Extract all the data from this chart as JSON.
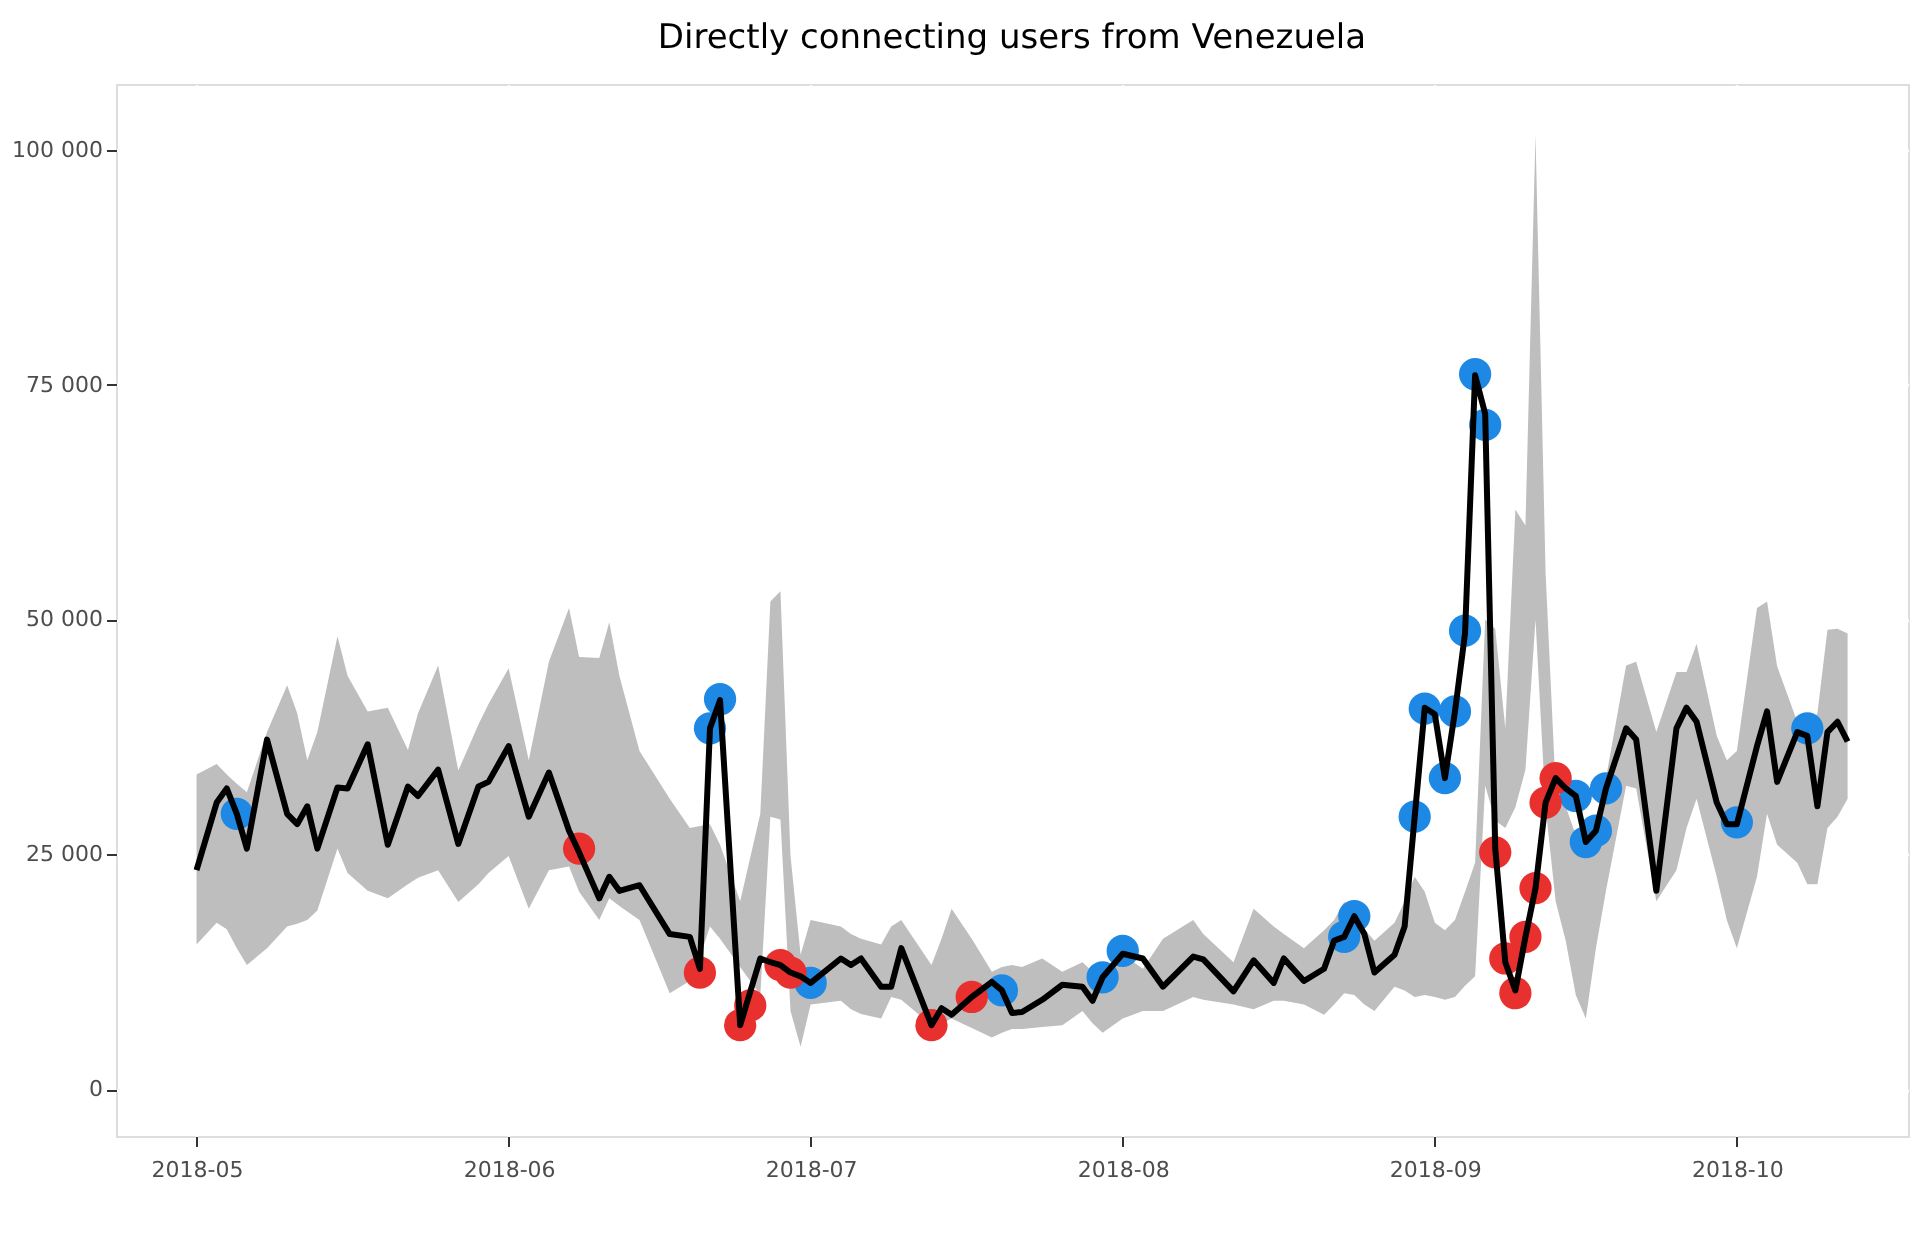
{
  "chart_data": {
    "type": "line",
    "title": "Directly connecting users from Venezuela",
    "xlim": [
      "2018-04-23",
      "2018-10-18"
    ],
    "xticks": [
      "2018-05",
      "2018-06",
      "2018-07",
      "2018-08",
      "2018-09",
      "2018-10"
    ],
    "ylim": [
      -5000,
      107000
    ],
    "yticks": [
      {
        "value": 0,
        "label": "0"
      },
      {
        "value": 25000,
        "label": "25 000"
      },
      {
        "value": 50000,
        "label": "50 000"
      },
      {
        "value": 75000,
        "label": "75 000"
      },
      {
        "value": 100000,
        "label": "100 000"
      }
    ],
    "grid": true,
    "marker": "none",
    "line_style": "solid",
    "series": [
      {
        "color": "#000000",
        "x": [
          "2018-05-01",
          "2018-05-03",
          "2018-05-04",
          "2018-05-05",
          "2018-05-06",
          "2018-05-08",
          "2018-05-10",
          "2018-05-11",
          "2018-05-12",
          "2018-05-13",
          "2018-05-15",
          "2018-05-16",
          "2018-05-18",
          "2018-05-20",
          "2018-05-22",
          "2018-05-23",
          "2018-05-25",
          "2018-05-27",
          "2018-05-29",
          "2018-05-30",
          "2018-06-01",
          "2018-06-03",
          "2018-06-05",
          "2018-06-07",
          "2018-06-08",
          "2018-06-10",
          "2018-06-11",
          "2018-06-12",
          "2018-06-14",
          "2018-06-17",
          "2018-06-19",
          "2018-06-20",
          "2018-06-21",
          "2018-06-22",
          "2018-06-24",
          "2018-06-26",
          "2018-06-27",
          "2018-06-28",
          "2018-06-29",
          "2018-06-30",
          "2018-07-01",
          "2018-07-04",
          "2018-07-05",
          "2018-07-06",
          "2018-07-08",
          "2018-07-09",
          "2018-07-10",
          "2018-07-13",
          "2018-07-14",
          "2018-07-15",
          "2018-07-17",
          "2018-07-19",
          "2018-07-20",
          "2018-07-21",
          "2018-07-22",
          "2018-07-24",
          "2018-07-26",
          "2018-07-28",
          "2018-07-29",
          "2018-07-30",
          "2018-08-01",
          "2018-08-03",
          "2018-08-05",
          "2018-08-08",
          "2018-08-09",
          "2018-08-12",
          "2018-08-14",
          "2018-08-16",
          "2018-08-17",
          "2018-08-19",
          "2018-08-21",
          "2018-08-22",
          "2018-08-23",
          "2018-08-24",
          "2018-08-25",
          "2018-08-26",
          "2018-08-28",
          "2018-08-29",
          "2018-08-30",
          "2018-08-31",
          "2018-09-01",
          "2018-09-02",
          "2018-09-03",
          "2018-09-04",
          "2018-09-05",
          "2018-09-06",
          "2018-09-07",
          "2018-09-08",
          "2018-09-09",
          "2018-09-10",
          "2018-09-11",
          "2018-09-12",
          "2018-09-13",
          "2018-09-14",
          "2018-09-15",
          "2018-09-16",
          "2018-09-17",
          "2018-09-18",
          "2018-09-20",
          "2018-09-21",
          "2018-09-23",
          "2018-09-25",
          "2018-09-26",
          "2018-09-27",
          "2018-09-29",
          "2018-09-30",
          "2018-10-01",
          "2018-10-03",
          "2018-10-04",
          "2018-10-05",
          "2018-10-07",
          "2018-10-08",
          "2018-10-09",
          "2018-10-10",
          "2018-10-11",
          "2018-10-12"
        ],
        "values": [
          23300,
          30500,
          32000,
          29300,
          25600,
          37200,
          29300,
          28200,
          30100,
          25600,
          32100,
          32000,
          36700,
          26000,
          32200,
          31200,
          34000,
          26100,
          32200,
          32700,
          36500,
          29000,
          33700,
          27500,
          25200,
          20300,
          22600,
          21100,
          21700,
          16500,
          16200,
          12800,
          38400,
          41400,
          6800,
          13900,
          13500,
          13200,
          12400,
          12000,
          11300,
          13900,
          13200,
          13900,
          10900,
          10900,
          15000,
          6800,
          8600,
          7900,
          9800,
          11400,
          10500,
          8100,
          8200,
          9500,
          11100,
          10900,
          9400,
          11900,
          14400,
          13900,
          10900,
          14100,
          13800,
          10400,
          13700,
          11300,
          13900,
          11500,
          12800,
          15800,
          16200,
          18400,
          16500,
          12400,
          14300,
          17300,
          29000,
          40600,
          39900,
          33100,
          40200,
          48500,
          76000,
          71900,
          25600,
          13500,
          10500,
          16200,
          21400,
          30500,
          33100,
          32000,
          31200,
          26300,
          27500,
          32000,
          38400,
          37200,
          21100,
          38400,
          40600,
          39100,
          30500,
          28200,
          28200,
          36500,
          40200,
          32700,
          38000,
          37600,
          30100,
          38000,
          39100,
          37000
        ],
        "lower": [
          15400,
          17700,
          17000,
          15000,
          13200,
          15000,
          17300,
          17600,
          18000,
          19000,
          25600,
          23000,
          21100,
          20300,
          21800,
          22500,
          23300,
          19900,
          21800,
          23000,
          24800,
          19200,
          23300,
          23700,
          21000,
          18000,
          20300,
          19500,
          18000,
          10200,
          11500,
          14000,
          17300,
          16000,
          13000,
          10000,
          29000,
          28700,
          8300,
          4500,
          9000,
          9400,
          8500,
          8000,
          7500,
          9800,
          9500,
          6800,
          7000,
          7500,
          6500,
          5500,
          6000,
          6400,
          6400,
          6600,
          6800,
          8300,
          7000,
          6000,
          7500,
          8300,
          8300,
          9800,
          9500,
          9000,
          8500,
          9400,
          9400,
          9000,
          7900,
          9000,
          10200,
          10000,
          9000,
          8300,
          10900,
          10500,
          9800,
          10000,
          9800,
          9500,
          9800,
          11000,
          12000,
          32300,
          28600,
          27800,
          30000,
          34000,
          50000,
          30000,
          20000,
          15800,
          10000,
          7500,
          15000,
          21100,
          32300,
          32000,
          20000,
          23300,
          27800,
          30900,
          22600,
          18000,
          15000,
          22600,
          29300,
          26000,
          24100,
          21800,
          21800,
          27800,
          29000,
          30900
        ],
        "upper": [
          33500,
          34600,
          33500,
          32500,
          31600,
          38000,
          43000,
          40000,
          35000,
          38000,
          48200,
          44000,
          40200,
          40600,
          36100,
          40000,
          45100,
          33900,
          38800,
          41000,
          44800,
          35000,
          45500,
          51200,
          46000,
          45900,
          49700,
          44000,
          36000,
          30900,
          27800,
          28000,
          28200,
          26000,
          20000,
          29300,
          51900,
          53000,
          24800,
          14300,
          18000,
          17300,
          16500,
          16000,
          15400,
          17300,
          18000,
          13200,
          16000,
          19200,
          16000,
          12500,
          13000,
          13200,
          13000,
          13900,
          12500,
          13500,
          12500,
          11300,
          14300,
          12800,
          16000,
          18000,
          16500,
          13500,
          19200,
          17300,
          16500,
          15000,
          16900,
          18000,
          19900,
          19000,
          17000,
          15800,
          17700,
          20000,
          22600,
          21000,
          17700,
          16900,
          18000,
          21000,
          24100,
          50000,
          49000,
          38400,
          61700,
          60000,
          101600,
          55000,
          32000,
          30100,
          27000,
          24800,
          28000,
          33100,
          45100,
          45500,
          38000,
          44400,
          44400,
          47400,
          37600,
          35000,
          36000,
          51200,
          51900,
          45000,
          39100,
          38000,
          40000,
          48900,
          49000,
          48500
        ]
      },
      {
        "type": "scatter",
        "color": "#1e88e5",
        "marker": "circle",
        "x": [
          "2018-05-05",
          "2018-06-21",
          "2018-06-22",
          "2018-07-01",
          "2018-07-20",
          "2018-07-30",
          "2018-08-01",
          "2018-08-23",
          "2018-08-24",
          "2018-08-30",
          "2018-08-31",
          "2018-09-02",
          "2018-09-03",
          "2018-09-04",
          "2018-09-05",
          "2018-09-06",
          "2018-09-15",
          "2018-09-16",
          "2018-09-17",
          "2018-09-18",
          "2018-10-01",
          "2018-10-08"
        ],
        "values": [
          29300,
          38400,
          41500,
          11300,
          10500,
          11900,
          14700,
          16200,
          18400,
          29000,
          40500,
          33100,
          40200,
          48800,
          76100,
          70700,
          31200,
          26300,
          27500,
          32000,
          28400,
          38400
        ]
      },
      {
        "type": "scatter",
        "color": "#e8302f",
        "marker": "circle",
        "x": [
          "2018-06-08",
          "2018-06-20",
          "2018-06-24",
          "2018-06-25",
          "2018-06-28",
          "2018-06-29",
          "2018-07-13",
          "2018-07-17",
          "2018-09-07",
          "2018-09-08",
          "2018-09-09",
          "2018-09-10",
          "2018-09-11",
          "2018-09-12",
          "2018-09-13"
        ],
        "values": [
          25600,
          12400,
          6800,
          8900,
          13200,
          12400,
          6800,
          9800,
          25200,
          13900,
          10200,
          16200,
          21400,
          30500,
          33100
        ]
      }
    ]
  }
}
